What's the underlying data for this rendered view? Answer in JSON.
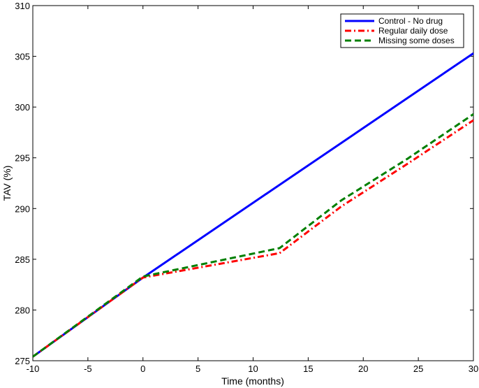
{
  "chart_data": {
    "type": "line",
    "title": "",
    "xlabel": "Time (months)",
    "ylabel": "TAV (%)",
    "xlim": [
      -10,
      30
    ],
    "ylim": [
      275,
      310
    ],
    "xticks": [
      -10,
      -5,
      0,
      5,
      10,
      15,
      20,
      25,
      30
    ],
    "yticks": [
      275,
      280,
      285,
      290,
      295,
      300,
      305,
      310
    ],
    "grid": false,
    "legend_position": "top-right",
    "series": [
      {
        "name": "Control - No drug",
        "color": "#0000ff",
        "style": "solid",
        "x": [
          -10,
          0,
          30
        ],
        "y": [
          275.4,
          283.2,
          305.3
        ]
      },
      {
        "name": "Regular daily dose",
        "color": "#ff0000",
        "style": "dashdot",
        "x": [
          -10,
          0,
          12.4,
          18,
          24,
          30
        ],
        "y": [
          275.4,
          283.2,
          285.6,
          290.2,
          294.4,
          298.7
        ]
      },
      {
        "name": "Missing some doses",
        "color": "#007f00",
        "style": "dashed",
        "x": [
          -10,
          0,
          12.4,
          18,
          24,
          30
        ],
        "y": [
          275.4,
          283.3,
          286.1,
          290.8,
          294.9,
          299.3
        ]
      }
    ]
  }
}
